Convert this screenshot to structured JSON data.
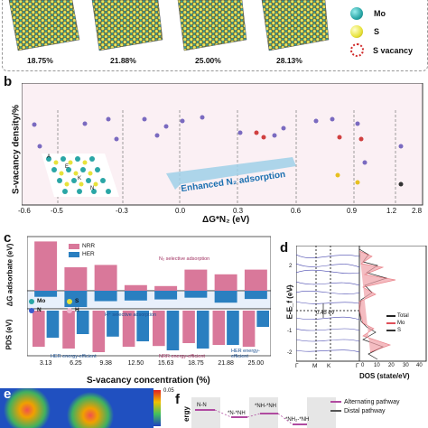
{
  "panel_a": {
    "concentrations": [
      "18.75%",
      "21.88%",
      "25.00%",
      "28.13%"
    ],
    "legend": [
      {
        "label": "Mo",
        "color": "#2aa6a6"
      },
      {
        "label": "S",
        "color": "#e7e23a"
      },
      {
        "label": "S vacancy",
        "color": "#d02a2a"
      }
    ]
  },
  "panel_b": {
    "letter": "b",
    "ylabel": "S-vacancy density/%",
    "xlabel": "ΔG*N₂ (eV)",
    "annotation": "Enhanced N₂ adsorption",
    "x_ticks": [
      "-0.6",
      "-0.5",
      "-0.3",
      "0.0",
      "0.3",
      "0.6",
      "0.9",
      "1.2",
      "2.8"
    ],
    "grid_letters": [
      "A",
      "B",
      "C",
      "D",
      "E",
      "F",
      "G",
      "H",
      "I",
      "J",
      "K",
      "L",
      "M",
      "N"
    ]
  },
  "panel_c": {
    "letter": "c",
    "ylabel_top": "ΔG adsorbate (eV)",
    "ylabel_bottom": "PDS (eV)",
    "xlabel": "S-vacancy concentration (%)",
    "legend": [
      {
        "label": "NRR",
        "color": "#d9789a"
      },
      {
        "label": "HER",
        "color": "#2a7fc0"
      }
    ],
    "atom_legend": [
      {
        "label": "Mo",
        "color": "#2aa6a6"
      },
      {
        "label": "S",
        "color": "#e7e23a"
      },
      {
        "label": "N",
        "color": "#3a5bd0"
      },
      {
        "label": "H",
        "color": "#f0b8d0"
      }
    ],
    "note_top": "N₂ selective adsorption",
    "note_mid": "H⁺ selective adsorption",
    "region_labels": [
      "HER energy-efficient",
      "NRR energy-efficient",
      "HER energy-efficient"
    ],
    "categories": [
      "3.13",
      "6.25",
      "9.38",
      "12.50",
      "15.63",
      "18.75",
      "21.88",
      "25.00"
    ]
  },
  "panel_d": {
    "letter": "d",
    "ylabel": "E-E_f (eV)",
    "xticks": [
      "Γ",
      "M",
      "K",
      "Γ"
    ],
    "xlabel": "DOS (state/eV)",
    "gap_label": "0.45 eV",
    "legend": [
      {
        "label": "Total",
        "color": "#222222"
      },
      {
        "label": "Mo",
        "color": "#e0505a"
      },
      {
        "label": "S",
        "color": "#333333"
      }
    ],
    "yticks": [
      "2",
      "1",
      "0",
      "-1",
      "-2"
    ],
    "dos_ticks": [
      "0",
      "10",
      "20",
      "30",
      "40"
    ]
  },
  "panel_e": {
    "letter": "e",
    "scale_max": "0.05"
  },
  "panel_f": {
    "letter": "f",
    "ylabel": "ergy",
    "steps": [
      "N-N",
      "*N-*NH",
      "*NH-*NH",
      "*NH₂-*NH"
    ],
    "legend": [
      {
        "label": "Alternating pathway",
        "color": "#b04aa0"
      },
      {
        "label": "Distal pathway",
        "color": "#555555"
      }
    ]
  },
  "chart_data": [
    {
      "type": "bar",
      "title": "",
      "xlabel": "S-vacancy concentration (%)",
      "ylabel": "ΔG adsorbate (eV)",
      "categories": [
        "3.13",
        "6.25",
        "9.38",
        "12.50",
        "15.63",
        "18.75",
        "21.88",
        "25.00"
      ],
      "series": [
        {
          "name": "NRR",
          "values": [
            1.05,
            0.5,
            0.55,
            0.12,
            0.1,
            0.45,
            0.35,
            0.45
          ]
        },
        {
          "name": "HER",
          "values": [
            -0.28,
            -0.75,
            -0.48,
            -0.45,
            -0.4,
            -0.32,
            -0.55,
            -0.38
          ]
        }
      ]
    },
    {
      "type": "bar",
      "title": "",
      "xlabel": "S-vacancy concentration (%)",
      "ylabel": "PDS (eV)",
      "categories": [
        "3.13",
        "6.25",
        "9.38",
        "12.50",
        "15.63",
        "18.75",
        "21.88",
        "25.00"
      ],
      "series": [
        {
          "name": "NRR",
          "values": [
            -1.0,
            -1.05,
            -1.15,
            -1.0,
            -0.98,
            -0.9,
            -0.95,
            -1.0
          ]
        },
        {
          "name": "HER",
          "values": [
            -0.75,
            -0.65,
            -0.72,
            -0.85,
            -1.1,
            -1.05,
            -0.95,
            -0.45
          ]
        }
      ]
    }
  ]
}
